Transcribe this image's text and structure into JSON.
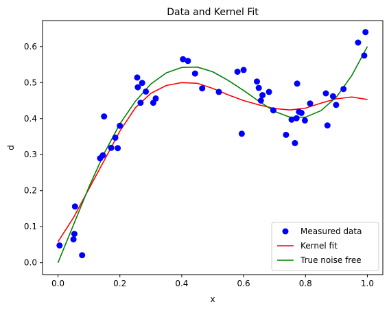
{
  "chart_data": {
    "type": "line",
    "title": "Data and Kernel Fit",
    "xlabel": "x",
    "ylabel": "d",
    "xlim": [
      -0.05,
      1.05
    ],
    "ylim": [
      -0.033,
      0.672
    ],
    "xticks": [
      0.0,
      0.2,
      0.4,
      0.6,
      0.8,
      1.0
    ],
    "xtick_labels": [
      "0.0",
      "0.2",
      "0.4",
      "0.6",
      "0.8",
      "1.0"
    ],
    "yticks": [
      0.0,
      0.1,
      0.2,
      0.3,
      0.4,
      0.5,
      0.6
    ],
    "ytick_labels": [
      "0.0",
      "0.1",
      "0.2",
      "0.3",
      "0.4",
      "0.5",
      "0.6"
    ],
    "grid": false,
    "legend_position": "lower-right",
    "series": [
      {
        "name": "Measured data",
        "kind": "scatter",
        "color": "#0000ff",
        "x": [
          0.005,
          0.05,
          0.053,
          0.055,
          0.078,
          0.136,
          0.145,
          0.149,
          0.172,
          0.185,
          0.193,
          0.2,
          0.256,
          0.258,
          0.267,
          0.272,
          0.284,
          0.308,
          0.316,
          0.404,
          0.42,
          0.443,
          0.466,
          0.52,
          0.58,
          0.594,
          0.6,
          0.643,
          0.649,
          0.656,
          0.661,
          0.682,
          0.696,
          0.737,
          0.755,
          0.766,
          0.771,
          0.773,
          0.779,
          0.787,
          0.798,
          0.815,
          0.866,
          0.871,
          0.889,
          0.899,
          0.923,
          0.97,
          0.99,
          0.994
        ],
        "y": [
          0.048,
          0.065,
          0.08,
          0.156,
          0.021,
          0.29,
          0.298,
          0.406,
          0.319,
          0.347,
          0.318,
          0.38,
          0.514,
          0.487,
          0.444,
          0.499,
          0.475,
          0.444,
          0.456,
          0.565,
          0.56,
          0.525,
          0.484,
          0.474,
          0.53,
          0.358,
          0.535,
          0.503,
          0.485,
          0.45,
          0.465,
          0.474,
          0.423,
          0.355,
          0.397,
          0.332,
          0.401,
          0.497,
          0.419,
          0.416,
          0.395,
          0.442,
          0.47,
          0.381,
          0.462,
          0.438,
          0.482,
          0.611,
          0.575,
          0.64
        ]
      },
      {
        "name": "Kernel fit",
        "kind": "line",
        "color": "#ff0000",
        "x": [
          0.0,
          0.05,
          0.1,
          0.15,
          0.2,
          0.25,
          0.3,
          0.35,
          0.4,
          0.45,
          0.5,
          0.55,
          0.6,
          0.65,
          0.7,
          0.75,
          0.8,
          0.85,
          0.9,
          0.95,
          1.0
        ],
        "y": [
          0.058,
          0.125,
          0.205,
          0.285,
          0.365,
          0.43,
          0.47,
          0.492,
          0.5,
          0.498,
          0.484,
          0.466,
          0.45,
          0.438,
          0.428,
          0.424,
          0.429,
          0.443,
          0.455,
          0.46,
          0.453
        ]
      },
      {
        "name": "True noise free",
        "kind": "line",
        "color": "#008000",
        "x": [
          0.0,
          0.05,
          0.1,
          0.15,
          0.2,
          0.25,
          0.3,
          0.35,
          0.4,
          0.45,
          0.5,
          0.55,
          0.6,
          0.65,
          0.7,
          0.75,
          0.8,
          0.85,
          0.9,
          0.95,
          1.0
        ],
        "y": [
          0.0,
          0.105,
          0.21,
          0.305,
          0.385,
          0.448,
          0.496,
          0.527,
          0.542,
          0.543,
          0.53,
          0.506,
          0.478,
          0.448,
          0.42,
          0.404,
          0.404,
          0.422,
          0.46,
          0.52,
          0.6
        ]
      }
    ]
  }
}
